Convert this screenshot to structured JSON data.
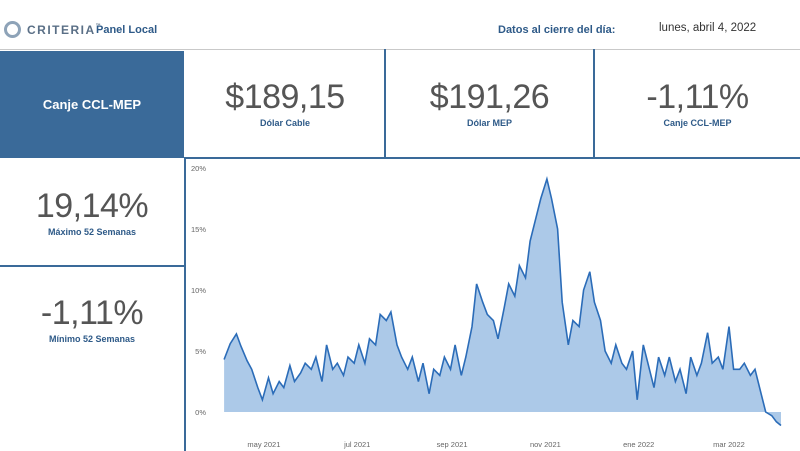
{
  "header": {
    "brand": "CRITERIA",
    "brand_mark": "™",
    "panel_title": "Panel Local",
    "close_label": "Datos al cierre del día:",
    "close_date": "lunes, abril 4, 2022"
  },
  "selected_tile": {
    "label": "Canje CCL-MEP"
  },
  "kpis": {
    "cable": {
      "value": "$189,15",
      "label": "Dólar Cable"
    },
    "mep": {
      "value": "$191,26",
      "label": "Dólar MEP"
    },
    "canje": {
      "value": "-1,11%",
      "label": "Canje CCL-MEP"
    },
    "max52": {
      "value": "19,14%",
      "label": "Máximo 52 Semanas"
    },
    "min52": {
      "value": "-1,11%",
      "label": "Mínimo 52 Semanas"
    }
  },
  "colors": {
    "accent": "#3a6a99",
    "area_fill": "#9dbfe4",
    "line": "#2b6cb8"
  },
  "chart_data": {
    "type": "area",
    "title": "",
    "xlabel": "",
    "ylabel": "",
    "y_ticks": [
      "20%",
      "15%",
      "10%",
      "5%",
      "0%"
    ],
    "y_tick_values": [
      20,
      15,
      10,
      5,
      0
    ],
    "x_ticks": [
      "may 2021",
      "jul 2021",
      "sep 2021",
      "nov 2021",
      "ene 2022",
      "mar 2022"
    ],
    "x_tick_dates": [
      "2021-05-01",
      "2021-07-01",
      "2021-09-01",
      "2021-11-01",
      "2022-01-01",
      "2022-03-01"
    ],
    "ylim": [
      0,
      20
    ],
    "xlim": [
      "2021-04-01",
      "2022-04-04"
    ],
    "grid": false,
    "series": [
      {
        "x": [
          "2021-04-05",
          "2021-04-09",
          "2021-04-13",
          "2021-04-16",
          "2021-04-20",
          "2021-04-23",
          "2021-04-27",
          "2021-04-30",
          "2021-05-04",
          "2021-05-07",
          "2021-05-11",
          "2021-05-14",
          "2021-05-18",
          "2021-05-21",
          "2021-05-25",
          "2021-05-28",
          "2021-06-01",
          "2021-06-04",
          "2021-06-08",
          "2021-06-11",
          "2021-06-15",
          "2021-06-18",
          "2021-06-22",
          "2021-06-25",
          "2021-06-29",
          "2021-07-02",
          "2021-07-06",
          "2021-07-09",
          "2021-07-13",
          "2021-07-16",
          "2021-07-20",
          "2021-07-23",
          "2021-07-27",
          "2021-07-30",
          "2021-08-03",
          "2021-08-06",
          "2021-08-10",
          "2021-08-13",
          "2021-08-17",
          "2021-08-20",
          "2021-08-24",
          "2021-08-27",
          "2021-08-31",
          "2021-09-03",
          "2021-09-07",
          "2021-09-10",
          "2021-09-14",
          "2021-09-17",
          "2021-09-21",
          "2021-09-24",
          "2021-09-28",
          "2021-10-01",
          "2021-10-05",
          "2021-10-08",
          "2021-10-12",
          "2021-10-15",
          "2021-10-19",
          "2021-10-22",
          "2021-10-26",
          "2021-10-29",
          "2021-11-02",
          "2021-11-05",
          "2021-11-09",
          "2021-11-12",
          "2021-11-16",
          "2021-11-19",
          "2021-11-23",
          "2021-11-26",
          "2021-11-30",
          "2021-12-03",
          "2021-12-07",
          "2021-12-10",
          "2021-12-14",
          "2021-12-17",
          "2021-12-21",
          "2021-12-24",
          "2021-12-28",
          "2021-12-31",
          "2022-01-04",
          "2022-01-07",
          "2022-01-11",
          "2022-01-14",
          "2022-01-18",
          "2022-01-21",
          "2022-01-25",
          "2022-01-28",
          "2022-02-01",
          "2022-02-04",
          "2022-02-08",
          "2022-02-11",
          "2022-02-15",
          "2022-02-18",
          "2022-02-22",
          "2022-02-25",
          "2022-03-01",
          "2022-03-04",
          "2022-03-08",
          "2022-03-11",
          "2022-03-15",
          "2022-03-18",
          "2022-03-22",
          "2022-03-25",
          "2022-03-29",
          "2022-04-01",
          "2022-04-04"
        ],
        "values": [
          4.3,
          5.6,
          6.4,
          5.4,
          4.2,
          3.5,
          2.0,
          1.0,
          2.8,
          1.5,
          2.5,
          2.0,
          3.8,
          2.5,
          3.2,
          4.0,
          3.5,
          4.5,
          2.5,
          5.5,
          3.5,
          4.0,
          3.0,
          4.5,
          4.0,
          5.5,
          4.0,
          6.0,
          5.5,
          8.0,
          7.5,
          8.2,
          5.5,
          4.5,
          3.5,
          4.5,
          2.5,
          4.0,
          1.5,
          3.5,
          3.0,
          4.5,
          3.5,
          5.5,
          3.0,
          4.5,
          7.0,
          10.5,
          9.0,
          8.0,
          7.5,
          6.0,
          8.5,
          10.5,
          9.5,
          12.0,
          11.0,
          14.0,
          16.0,
          17.5,
          19.1,
          17.5,
          15.0,
          9.0,
          5.5,
          7.5,
          7.0,
          10.0,
          11.5,
          9.0,
          7.5,
          5.0,
          4.0,
          5.5,
          4.0,
          3.5,
          5.0,
          1.0,
          5.5,
          4.0,
          2.0,
          4.5,
          3.0,
          4.5,
          2.5,
          3.5,
          1.5,
          4.5,
          3.0,
          4.0,
          6.5,
          4.0,
          4.5,
          3.5,
          7.0,
          3.5,
          3.5,
          4.0,
          3.0,
          3.5,
          1.5,
          0.0,
          -0.3,
          -0.8,
          -1.11
        ]
      }
    ]
  }
}
